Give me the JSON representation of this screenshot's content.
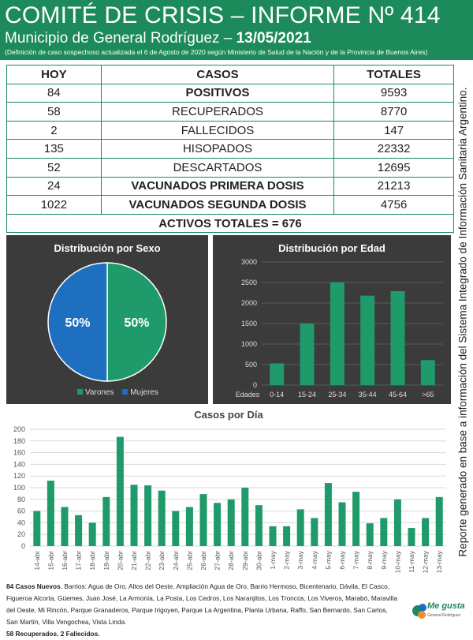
{
  "header": {
    "title": "COMITÉ DE CRISIS – INFORME Nº 414",
    "subtitle_prefix": "Municipio de General Rodríguez – ",
    "subtitle_date": "13/05/2021",
    "note": "(Definición de caso sospechoso actualizada el 6 de Agosto de 2020 según Ministerio de Salud de la Nación y de la Provincia de Buenos Aires)"
  },
  "table": {
    "headers": [
      "HOY",
      "CASOS",
      "TOTALES"
    ],
    "rows": [
      {
        "hoy": "84",
        "caso": "POSITIVOS",
        "total": "9593"
      },
      {
        "hoy": "58",
        "caso": "RECUPERADOS",
        "total": "8770"
      },
      {
        "hoy": "2",
        "caso": "FALLECIDOS",
        "total": "147"
      },
      {
        "hoy": "135",
        "caso": "HISOPADOS",
        "total": "22332"
      },
      {
        "hoy": "52",
        "caso": "DESCARTADOS",
        "total": "12695"
      },
      {
        "hoy": "24",
        "caso": "VACUNADOS PRIMERA DOSIS",
        "total": "21213"
      },
      {
        "hoy": "1022",
        "caso": "VACUNADOS SEGUNDA DOSIS",
        "total": "4756"
      }
    ],
    "activos": "ACTIVOS TOTALES = 676"
  },
  "side_note": "Reporte generado en base a información del Sistema Integrado de Información Sanitaria Argentino.",
  "colors": {
    "green": "#1c8a5a",
    "bar_green": "#1f9a6a",
    "blue": "#1f7fc0",
    "pie_blue": "#1f6fc0",
    "orange": "#e8912d",
    "panel_bg": "#3b3b3b"
  },
  "chart_data": [
    {
      "type": "pie",
      "title": "Distribución por Sexo",
      "labels": [
        "Varones",
        "Mujeres"
      ],
      "values": [
        50,
        50
      ],
      "value_labels": [
        "50%",
        "50%"
      ],
      "legend": "bottom"
    },
    {
      "type": "bar",
      "title": "Distribución por Edad",
      "xlabel": "Edades",
      "categories": [
        "0-14",
        "15-24",
        "25-34",
        "35-44",
        "45-64",
        ">65"
      ],
      "values": [
        530,
        1500,
        2510,
        2180,
        2290,
        610
      ],
      "ylim": [
        0,
        3000
      ],
      "yticks": [
        0,
        500,
        1000,
        1500,
        2000,
        2500,
        3000
      ],
      "grid": true
    },
    {
      "type": "bar",
      "title": "Casos por Día",
      "categories": [
        "14-abr",
        "15-abr",
        "16-abr",
        "17-abr",
        "18-abr",
        "19-abr",
        "20-abr",
        "21-abr",
        "22-abr",
        "23-abr",
        "24-abr",
        "25-abr",
        "26-abr",
        "27-abr",
        "28-abr",
        "29-abr",
        "30-abr",
        "1-may",
        "2-may",
        "3-may",
        "4-may",
        "5-may",
        "6-may",
        "7-may",
        "8-may",
        "9-may",
        "10-may",
        "11-may",
        "12-may",
        "13-may"
      ],
      "values": [
        60,
        112,
        67,
        53,
        40,
        84,
        187,
        105,
        104,
        95,
        60,
        67,
        89,
        74,
        80,
        100,
        70,
        34,
        34,
        63,
        48,
        108,
        75,
        93,
        39,
        48,
        80,
        31,
        48,
        84
      ],
      "ylim": [
        0,
        200
      ],
      "yticks": [
        0,
        20,
        40,
        60,
        80,
        100,
        120,
        140,
        160,
        180,
        200
      ],
      "grid": true
    }
  ],
  "footer": {
    "nuevos_label": "84 Casos Nuevos",
    "nuevos_text": ". Barrios: Agua de Oro, Altos del Oeste, Ampliación Agua de Oro, Barrio Hermoso, Bicentenario, Dávila, El Casco, Figueroa Alcorta, Güemes, Juan José, La Armonía, La Posta, Los Cedros, Los Naranjitos, Los Troncos, Los Viveros, Marabó, Maravilla del Oeste, Mi Rincón, Parque Granaderos, Parque Irigoyen, Parque La Argentina, Planta Urbana, Raffo, San Bernardo, San Carlos, San Martín, Villa Vengochea, Vista Linda.",
    "recuperados": "58 Recuperados. 2 Fallecidos."
  },
  "logo": {
    "text": "Me gusta",
    "subtext": "General Rodríguez"
  }
}
